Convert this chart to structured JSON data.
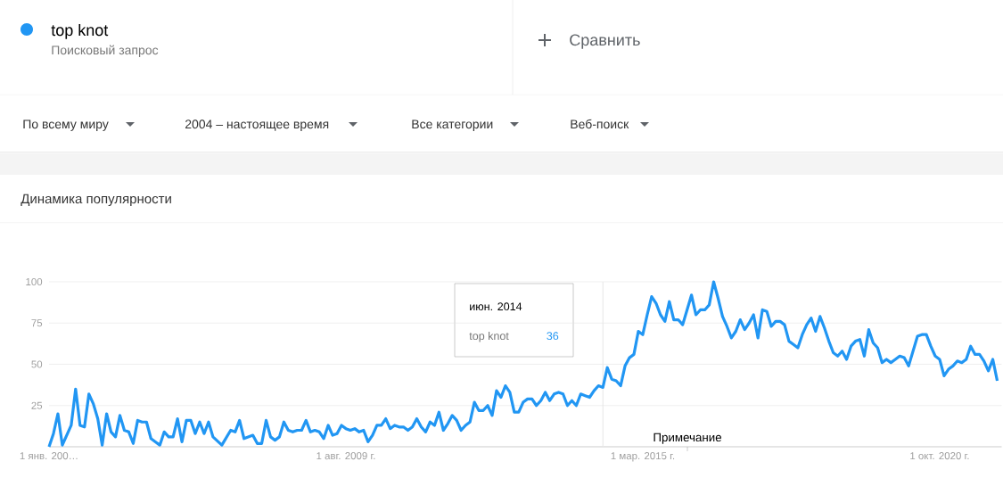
{
  "chart_data": {
    "type": "line",
    "title": "Динамика популярности",
    "annotations": [
      "Поисковый запрос",
      "Сравнить",
      "По всему миру",
      "2004 – настоящее время",
      "Все категории",
      "Веб-поиск",
      "Примечание",
      "июн. 2014",
      "36"
    ],
    "x": [
      "2004-01",
      "2004-02",
      "2004-03",
      "2004-04",
      "2004-06",
      "2004-07",
      "2004-08",
      "2004-09",
      "2004-10",
      "2004-11",
      "2004-12",
      "2005-01",
      "2005-02",
      "2005-03",
      "2005-04",
      "2005-05",
      "2005-06",
      "2005-07",
      "2005-08",
      "2005-09",
      "2005-10",
      "2005-11",
      "2005-12",
      "2006-01",
      "2006-02",
      "2006-03",
      "2006-04",
      "2006-05",
      "2006-06",
      "2006-07",
      "2006-08",
      "2006-09",
      "2006-10",
      "2006-11",
      "2006-12",
      "2007-01",
      "2007-02",
      "2007-04",
      "2007-06",
      "2007-07",
      "2007-08",
      "2007-09",
      "2007-11",
      "2007-12",
      "2008-01",
      "2008-02",
      "2008-03",
      "2008-04",
      "2008-05",
      "2008-06",
      "2008-07",
      "2008-08",
      "2008-09",
      "2008-10",
      "2008-11",
      "2008-12",
      "2009-01",
      "2009-02",
      "2009-03",
      "2009-04",
      "2009-05",
      "2009-06",
      "2009-07",
      "2009-08",
      "2009-09",
      "2009-10",
      "2009-11",
      "2009-12",
      "2010-01",
      "2010-02",
      "2010-03",
      "2010-04",
      "2010-05",
      "2010-06",
      "2010-07",
      "2010-08",
      "2010-09",
      "2010-10",
      "2010-11",
      "2010-12",
      "2011-01",
      "2011-02",
      "2011-03",
      "2011-04",
      "2011-05",
      "2011-06",
      "2011-07",
      "2011-08",
      "2011-09",
      "2011-10",
      "2011-11",
      "2011-12",
      "2012-01",
      "2012-02",
      "2012-03",
      "2012-04",
      "2012-05",
      "2012-06",
      "2012-07",
      "2012-08",
      "2012-09",
      "2012-10",
      "2012-11",
      "2012-12",
      "2013-01",
      "2013-02",
      "2013-03",
      "2013-04",
      "2013-05",
      "2013-06",
      "2013-07",
      "2013-08",
      "2013-09",
      "2013-10",
      "2013-11",
      "2013-12",
      "2014-01",
      "2014-02",
      "2014-03",
      "2014-04",
      "2014-05",
      "2014-06",
      "2014-07",
      "2014-08",
      "2014-09",
      "2014-10",
      "2014-11",
      "2014-12",
      "2015-01",
      "2015-02",
      "2015-03",
      "2015-04",
      "2015-05",
      "2015-06",
      "2015-07",
      "2015-08",
      "2015-09",
      "2015-10",
      "2015-11",
      "2015-12",
      "2016-01",
      "2016-02",
      "2016-03",
      "2016-04",
      "2016-05",
      "2016-06",
      "2016-07",
      "2016-08",
      "2016-09",
      "2016-10",
      "2016-11",
      "2016-12",
      "2017-01",
      "2017-02",
      "2017-03",
      "2017-04",
      "2017-05",
      "2017-06",
      "2017-07",
      "2017-08",
      "2017-09",
      "2017-10",
      "2017-11",
      "2017-12",
      "2018-01",
      "2018-02",
      "2018-03",
      "2018-04",
      "2018-05",
      "2018-06",
      "2018-07",
      "2018-08",
      "2018-09",
      "2018-10",
      "2018-11",
      "2018-12",
      "2019-01",
      "2019-02",
      "2019-03",
      "2019-04",
      "2019-05",
      "2019-06",
      "2019-07",
      "2019-08",
      "2019-09",
      "2019-10",
      "2019-11",
      "2019-12",
      "2020-01",
      "2020-02",
      "2020-03",
      "2020-04",
      "2020-05",
      "2020-06",
      "2020-07",
      "2020-08",
      "2020-09",
      "2020-10",
      "2020-11",
      "2020-12",
      "2021-01",
      "2021-02",
      "2021-03",
      "2021-04",
      "2021-05",
      "2021-06",
      "2021-07",
      "2021-08",
      "2021-09",
      "2021-10",
      "2021-11"
    ],
    "series": [
      {
        "name": "top knot",
        "color": "#2196f3",
        "values": [
          0,
          8,
          20,
          1,
          13,
          35,
          13,
          12,
          32,
          26,
          17,
          1,
          20,
          9,
          6,
          19,
          10,
          9,
          2,
          16,
          15,
          15,
          5,
          3,
          1,
          9,
          6,
          6,
          17,
          3,
          16,
          16,
          8,
          15,
          8,
          15,
          6,
          1,
          10,
          9,
          16,
          5,
          7,
          2,
          2,
          16,
          6,
          4,
          6,
          15,
          10,
          9,
          10,
          10,
          16,
          9,
          10,
          9,
          5,
          13,
          7,
          8,
          13,
          11,
          10,
          11,
          9,
          10,
          3,
          7,
          13,
          13,
          17,
          11,
          13,
          12,
          12,
          10,
          12,
          17,
          12,
          9,
          15,
          13,
          21,
          10,
          14,
          19,
          16,
          10,
          13,
          15,
          27,
          22,
          22,
          25,
          19,
          34,
          30,
          37,
          33,
          21,
          21,
          27,
          29,
          29,
          25,
          28,
          33,
          28,
          32,
          33,
          32,
          25,
          28,
          25,
          32,
          31,
          30,
          34,
          37,
          36,
          48,
          41,
          40,
          37,
          49,
          54,
          56,
          70,
          68,
          80,
          91,
          87,
          80,
          76,
          88,
          77,
          77,
          74,
          83,
          92,
          80,
          83,
          83,
          86,
          100,
          90,
          79,
          73,
          66,
          70,
          77,
          71,
          75,
          80,
          66,
          83,
          82,
          73,
          76,
          76,
          74,
          64,
          62,
          60,
          68,
          74,
          78,
          70,
          79,
          72,
          64,
          57,
          55,
          58,
          53,
          61,
          64,
          65,
          55,
          71,
          63,
          60,
          51,
          53,
          51,
          53,
          55,
          54,
          49,
          58,
          67,
          68,
          68,
          61,
          55,
          53,
          43,
          47,
          49,
          52,
          51,
          53,
          61,
          56,
          56,
          52,
          46,
          53,
          40
        ]
      }
    ],
    "xlim": [
      "2004-01",
      "2021-12"
    ],
    "xticks": [
      {
        "value": "2004-01",
        "label": "1 янв. 200…"
      },
      {
        "value": "2009-08",
        "label": "1 авг. 2009 г."
      },
      {
        "value": "2015-03",
        "label": "1 мар. 2015 г."
      },
      {
        "value": "2020-10",
        "label": "1 окт. 2020 г."
      }
    ],
    "ylim": [
      0,
      100
    ],
    "yticks": [
      25,
      50,
      75,
      100
    ],
    "ref_lines": [
      {
        "axis": "x",
        "value": "2014-06",
        "color": "#e6e6e6"
      }
    ],
    "grid": "y",
    "legend": "top left"
  }
}
